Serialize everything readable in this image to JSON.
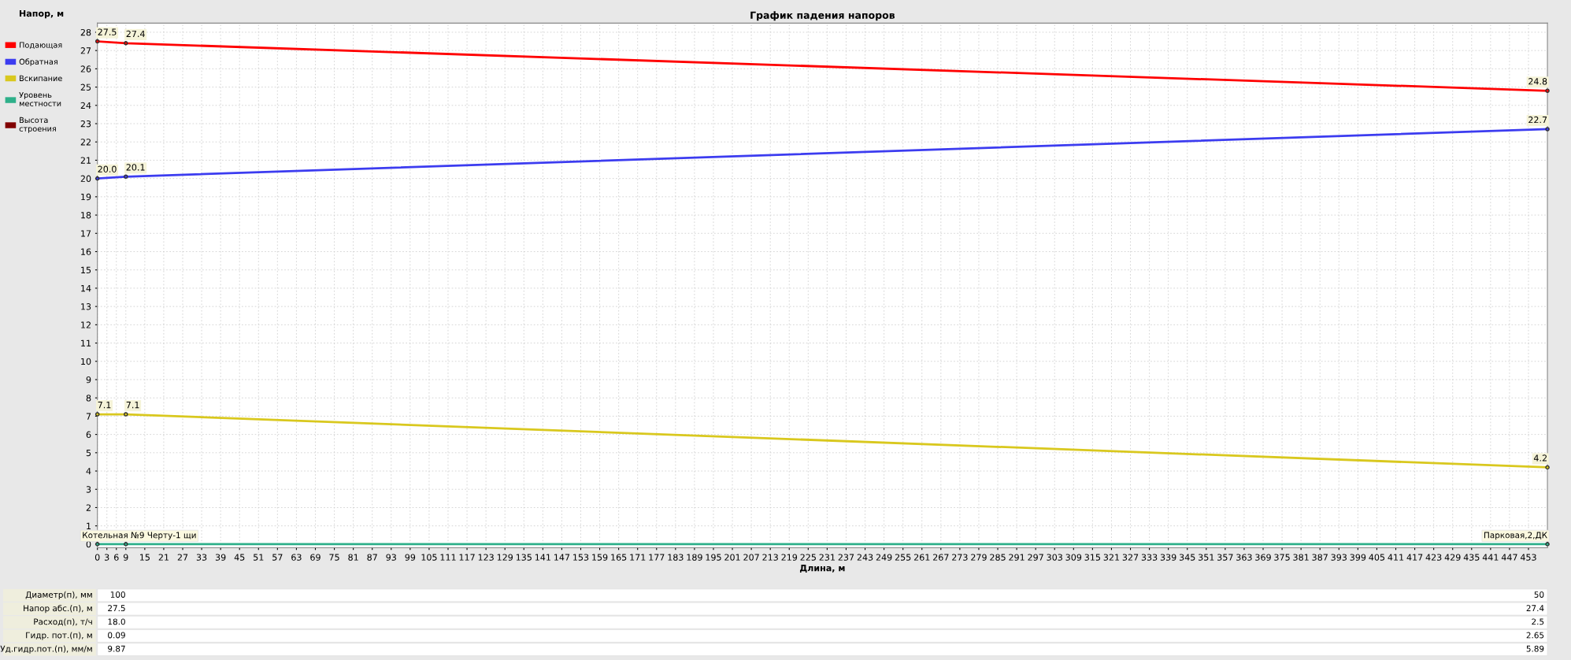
{
  "chart_data": {
    "type": "line",
    "title": "График падения напоров",
    "xlabel": "Длина, м",
    "ylabel": "Напор, м",
    "x": [
      0,
      9,
      459
    ],
    "series": [
      {
        "name": "Подающая",
        "color": "#ff0000",
        "values": [
          27.5,
          27.4,
          24.8
        ],
        "value_labels": [
          "27.5",
          "27.4",
          "24.8"
        ]
      },
      {
        "name": "Обратная",
        "color": "#3c3cf0",
        "values": [
          20.0,
          20.1,
          22.7
        ],
        "value_labels": [
          "20.0",
          "20.1",
          "22.7"
        ]
      },
      {
        "name": "Вскипание",
        "color": "#d9c81e",
        "values": [
          7.1,
          7.1,
          4.2
        ],
        "value_labels": [
          "7.1",
          "7.1",
          "4.2"
        ]
      },
      {
        "name": "Уровень местности",
        "color": "#2eb08a",
        "values": [
          0,
          0,
          0
        ]
      },
      {
        "name": "Высота строения",
        "color": "#800000",
        "values": [
          null,
          null,
          null
        ]
      }
    ],
    "xlim": [
      0,
      459
    ],
    "ylim": [
      -0.2,
      28.5
    ],
    "xticks": [
      0,
      3,
      6,
      9,
      15,
      21,
      27,
      33,
      39,
      45,
      51,
      57,
      63,
      69,
      75,
      81,
      87,
      93,
      99,
      105,
      111,
      117,
      123,
      129,
      135,
      141,
      147,
      153,
      159,
      165,
      171,
      177,
      183,
      189,
      195,
      201,
      207,
      213,
      219,
      225,
      231,
      237,
      243,
      249,
      255,
      261,
      267,
      273,
      279,
      285,
      291,
      297,
      303,
      309,
      315,
      321,
      327,
      333,
      339,
      345,
      351,
      357,
      363,
      369,
      375,
      381,
      387,
      393,
      399,
      405,
      411,
      417,
      423,
      429,
      435,
      441,
      447,
      453
    ],
    "yticks": [
      0,
      1,
      2,
      3,
      4,
      5,
      6,
      7,
      8,
      9,
      10,
      11,
      12,
      13,
      14,
      15,
      16,
      17,
      18,
      19,
      20,
      21,
      22,
      23,
      24,
      25,
      26,
      27,
      28
    ],
    "grid": true,
    "legend": "left",
    "marker": "circle",
    "line_style": "solid",
    "annotations": [
      {
        "text": "Котельная №9 Черту-1 щи",
        "x": 0,
        "y": 0
      },
      {
        "text": "Парковая,2,ДК",
        "x": 459,
        "y": 0
      },
      "Диаметр(п), мм",
      "100",
      "50",
      "Напор абс.(п), м",
      "27.5",
      "27.4",
      "Расход(п), т/ч",
      "18.0",
      "2.5",
      "Гидр. пот.(п), м",
      "0.09",
      "2.65",
      "Уд.гидр.пот.(п), мм/м",
      "9.87",
      "5.89"
    ]
  }
}
